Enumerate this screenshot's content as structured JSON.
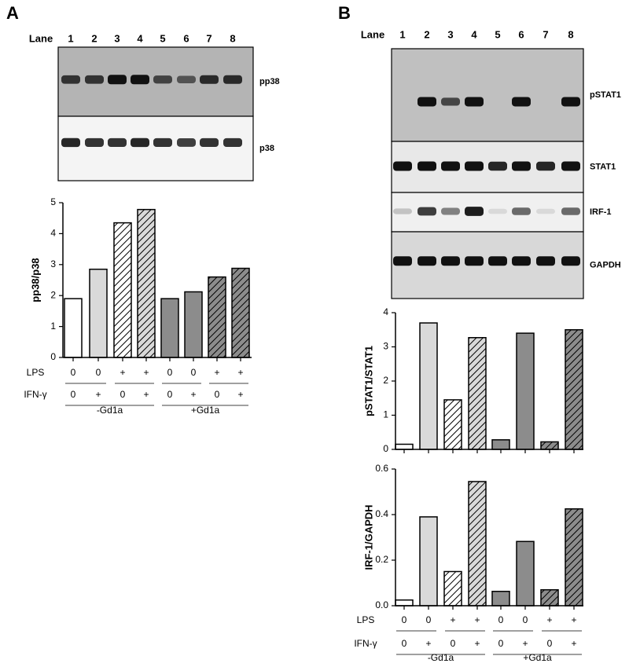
{
  "panels": [
    {
      "label": "A",
      "lane_title": "Lane",
      "lanes": [
        "1",
        "2",
        "3",
        "4",
        "5",
        "6",
        "7",
        "8"
      ],
      "blots": [
        "pp38",
        "p38"
      ],
      "conditions": {
        "rows": [
          {
            "name": "LPS",
            "values": [
              "0",
              "0",
              "+",
              "+",
              "0",
              "0",
              "+",
              "+"
            ]
          },
          {
            "name": "IFN-γ",
            "values": [
              "0",
              "+",
              "0",
              "+",
              "0",
              "+",
              "0",
              "+"
            ]
          }
        ],
        "groups": [
          "-Gd1a",
          "+Gd1a"
        ]
      }
    },
    {
      "label": "B",
      "lane_title": "Lane",
      "lanes": [
        "1",
        "2",
        "3",
        "4",
        "5",
        "6",
        "7",
        "8"
      ],
      "blots": [
        "pSTAT1",
        "STAT1",
        "IRF-1",
        "GAPDH"
      ],
      "conditions": {
        "rows": [
          {
            "name": "LPS",
            "values": [
              "0",
              "0",
              "+",
              "+",
              "0",
              "0",
              "+",
              "+"
            ]
          },
          {
            "name": "IFN-γ",
            "values": [
              "0",
              "+",
              "0",
              "+",
              "0",
              "+",
              "0",
              "+"
            ]
          }
        ],
        "groups": [
          "-Gd1a",
          "+Gd1a"
        ]
      }
    }
  ],
  "chart_data": [
    {
      "type": "bar",
      "ylabel": "pp38/p38",
      "values": [
        1.9,
        2.85,
        4.35,
        4.78,
        1.9,
        2.12,
        2.6,
        2.88
      ],
      "colors": [
        "#ffffff",
        "#d9d9d9",
        "#ffffff",
        "#d9d9d9",
        "#8c8c8c",
        "#8c8c8c",
        "#8c8c8c",
        "#8c8c8c"
      ],
      "hatched": [
        false,
        false,
        true,
        true,
        false,
        false,
        true,
        true
      ],
      "ylim": [
        0,
        5
      ],
      "yticks": [
        0,
        1,
        2,
        3,
        4,
        5
      ]
    },
    {
      "type": "bar",
      "ylabel": "pSTAT1/STAT1",
      "values": [
        0.15,
        3.7,
        1.45,
        3.27,
        0.28,
        3.4,
        0.22,
        3.5
      ],
      "colors": [
        "#ffffff",
        "#d9d9d9",
        "#ffffff",
        "#d9d9d9",
        "#8c8c8c",
        "#8c8c8c",
        "#8c8c8c",
        "#8c8c8c"
      ],
      "hatched": [
        false,
        false,
        true,
        true,
        false,
        false,
        true,
        true
      ],
      "ylim": [
        0,
        4
      ],
      "yticks": [
        0,
        1,
        2,
        3,
        4
      ]
    },
    {
      "type": "bar",
      "ylabel": "IRF-1/GAPDH",
      "values": [
        0.025,
        0.39,
        0.15,
        0.545,
        0.063,
        0.282,
        0.07,
        0.425
      ],
      "colors": [
        "#ffffff",
        "#d9d9d9",
        "#ffffff",
        "#d9d9d9",
        "#8c8c8c",
        "#8c8c8c",
        "#8c8c8c",
        "#8c8c8c"
      ],
      "hatched": [
        false,
        false,
        true,
        true,
        false,
        false,
        true,
        true
      ],
      "ylim": [
        0,
        0.6
      ],
      "yticks": [
        {
          "value": 0,
          "label": "0.0"
        },
        0.2,
        0.4,
        0.6
      ]
    }
  ]
}
